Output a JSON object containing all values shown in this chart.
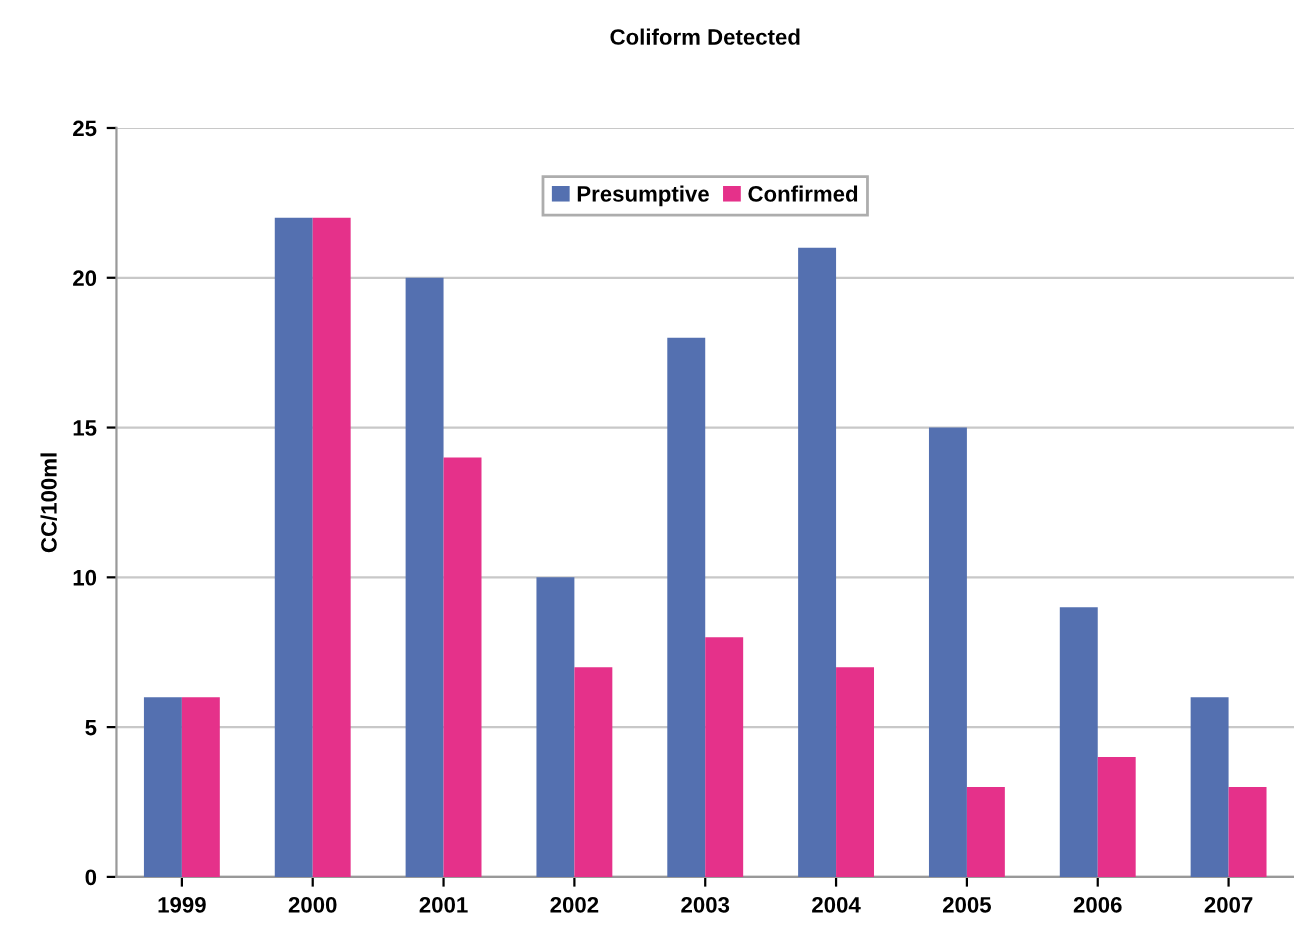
{
  "chart_data": {
    "type": "bar",
    "title": "Coliform Detected",
    "ylabel": "CC/100ml",
    "categories": [
      "1999",
      "2000",
      "2001",
      "2002",
      "2003",
      "2004",
      "2005",
      "2006",
      "2007"
    ],
    "series": [
      {
        "name": "Presumptive",
        "color": "#5470b0",
        "values": [
          6,
          22,
          20,
          10,
          18,
          21,
          15,
          9,
          6
        ]
      },
      {
        "name": "Confirmed",
        "color": "#e5318a",
        "values": [
          6,
          22,
          14,
          7,
          8,
          7,
          3,
          4,
          3
        ]
      }
    ],
    "ylim": [
      0,
      25
    ],
    "yticks": [
      0,
      5,
      10,
      15,
      20,
      25
    ],
    "grid": "y",
    "legend": "top"
  }
}
